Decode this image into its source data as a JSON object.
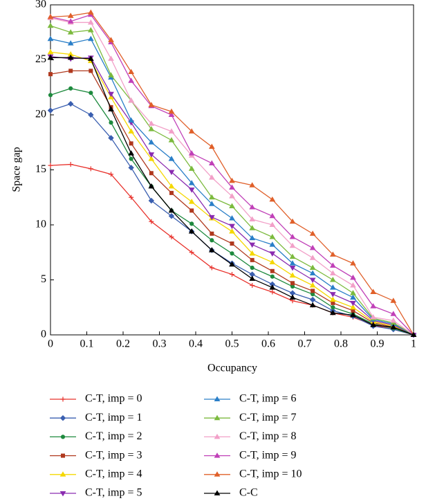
{
  "chart_data": {
    "type": "line",
    "x_label": "Occupancy",
    "y_label": "Space gap",
    "x": [
      0,
      0.0556,
      0.1111,
      0.1667,
      0.2222,
      0.2778,
      0.3333,
      0.3889,
      0.4444,
      0.5,
      0.5556,
      0.6111,
      0.6667,
      0.7222,
      0.7778,
      0.8333,
      0.8889,
      0.9444,
      1
    ],
    "xlim": [
      0,
      1
    ],
    "xticks": [
      0,
      0.1,
      0.2,
      0.3,
      0.4,
      0.5,
      0.6,
      0.7,
      0.8,
      0.9,
      1
    ],
    "ylim": [
      0,
      30
    ],
    "yticks": [
      0,
      5,
      10,
      15,
      20,
      25,
      30
    ],
    "grid": false,
    "series": [
      {
        "name": "C-T, imp = 0",
        "color": "#e8302a",
        "marker": "plus",
        "values": [
          15.4,
          15.5,
          15.1,
          14.6,
          12.5,
          10.3,
          8.9,
          7.5,
          6.1,
          5.5,
          4.5,
          3.9,
          3.1,
          2.7,
          2.0,
          1.6,
          0.9,
          0.5,
          0
        ]
      },
      {
        "name": "C-T, imp = 1",
        "color": "#3a5fb0",
        "marker": "diamond",
        "values": [
          20.4,
          21.0,
          20.0,
          17.9,
          15.2,
          12.2,
          10.8,
          9.4,
          7.7,
          6.5,
          5.5,
          4.6,
          3.8,
          3.2,
          2.2,
          1.7,
          0.8,
          0.5,
          0
        ]
      },
      {
        "name": "C-T, imp = 2",
        "color": "#1e8a3e",
        "marker": "circle",
        "values": [
          21.8,
          22.4,
          22.0,
          19.3,
          16.0,
          13.5,
          11.3,
          10.1,
          8.6,
          7.4,
          6.1,
          5.3,
          4.4,
          3.7,
          2.5,
          1.9,
          1.0,
          0.6,
          0
        ]
      },
      {
        "name": "C-T, imp = 3",
        "color": "#b0391e",
        "marker": "square",
        "values": [
          23.7,
          24.0,
          24.0,
          20.7,
          17.4,
          14.7,
          12.9,
          11.3,
          9.2,
          8.3,
          6.8,
          5.8,
          4.7,
          4.0,
          2.9,
          2.2,
          1.1,
          0.7,
          0
        ]
      },
      {
        "name": "C-T, imp = 4",
        "color": "#f5d800",
        "marker": "triangle-up",
        "values": [
          25.7,
          25.5,
          24.9,
          21.6,
          18.5,
          16.0,
          13.5,
          12.1,
          10.6,
          9.4,
          7.4,
          6.6,
          5.4,
          4.5,
          3.2,
          2.5,
          1.2,
          0.8,
          0
        ]
      },
      {
        "name": "C-T, imp = 5",
        "color": "#8a2bb0",
        "marker": "triangle-down",
        "values": [
          25.3,
          25.1,
          25.2,
          21.9,
          19.3,
          16.4,
          14.8,
          13.2,
          10.7,
          9.9,
          8.2,
          7.4,
          6.1,
          5.0,
          3.7,
          2.9,
          1.3,
          0.9,
          0
        ]
      },
      {
        "name": "C-T, imp = 6",
        "color": "#2a7fc8",
        "marker": "triangle-up",
        "values": [
          26.9,
          26.5,
          26.9,
          23.4,
          19.5,
          17.5,
          16.0,
          13.8,
          11.9,
          10.6,
          8.8,
          8.2,
          6.5,
          5.6,
          4.3,
          3.4,
          1.4,
          1.0,
          0
        ]
      },
      {
        "name": "C-T, imp = 7",
        "color": "#7cba3e",
        "marker": "triangle-up",
        "values": [
          28.1,
          27.5,
          27.7,
          23.6,
          21.3,
          18.7,
          17.7,
          15.1,
          12.5,
          11.7,
          9.7,
          8.9,
          7.1,
          6.1,
          5.0,
          3.8,
          1.5,
          1.1,
          0
        ]
      },
      {
        "name": "C-T, imp = 8",
        "color": "#f2a0c8",
        "marker": "triangle-up",
        "values": [
          28.8,
          28.4,
          28.4,
          25.1,
          21.3,
          19.2,
          18.5,
          16.3,
          14.3,
          12.6,
          10.5,
          10.0,
          8.1,
          7.0,
          5.6,
          4.5,
          1.6,
          1.3,
          0
        ]
      },
      {
        "name": "C-T, imp = 9",
        "color": "#c040b8",
        "marker": "triangle-up",
        "values": [
          28.9,
          28.5,
          29.1,
          26.6,
          23.1,
          20.8,
          20.0,
          16.5,
          15.6,
          13.4,
          11.6,
          10.8,
          8.9,
          7.9,
          6.3,
          5.2,
          2.6,
          1.9,
          0
        ]
      },
      {
        "name": "C-T, imp = 10",
        "color": "#e0602a",
        "marker": "triangle-up",
        "values": [
          28.9,
          29.0,
          29.3,
          26.8,
          23.9,
          20.9,
          20.3,
          18.5,
          17.1,
          14.0,
          13.6,
          12.3,
          10.3,
          9.2,
          7.3,
          6.5,
          3.9,
          3.1,
          0
        ]
      },
      {
        "name": "C-C",
        "color": "#000000",
        "marker": "triangle-up",
        "values": [
          25.2,
          25.2,
          25.1,
          20.5,
          16.5,
          13.5,
          11.3,
          9.4,
          7.7,
          6.4,
          5.1,
          4.3,
          3.4,
          2.7,
          2.0,
          1.8,
          0.9,
          0.7,
          0
        ]
      }
    ]
  }
}
